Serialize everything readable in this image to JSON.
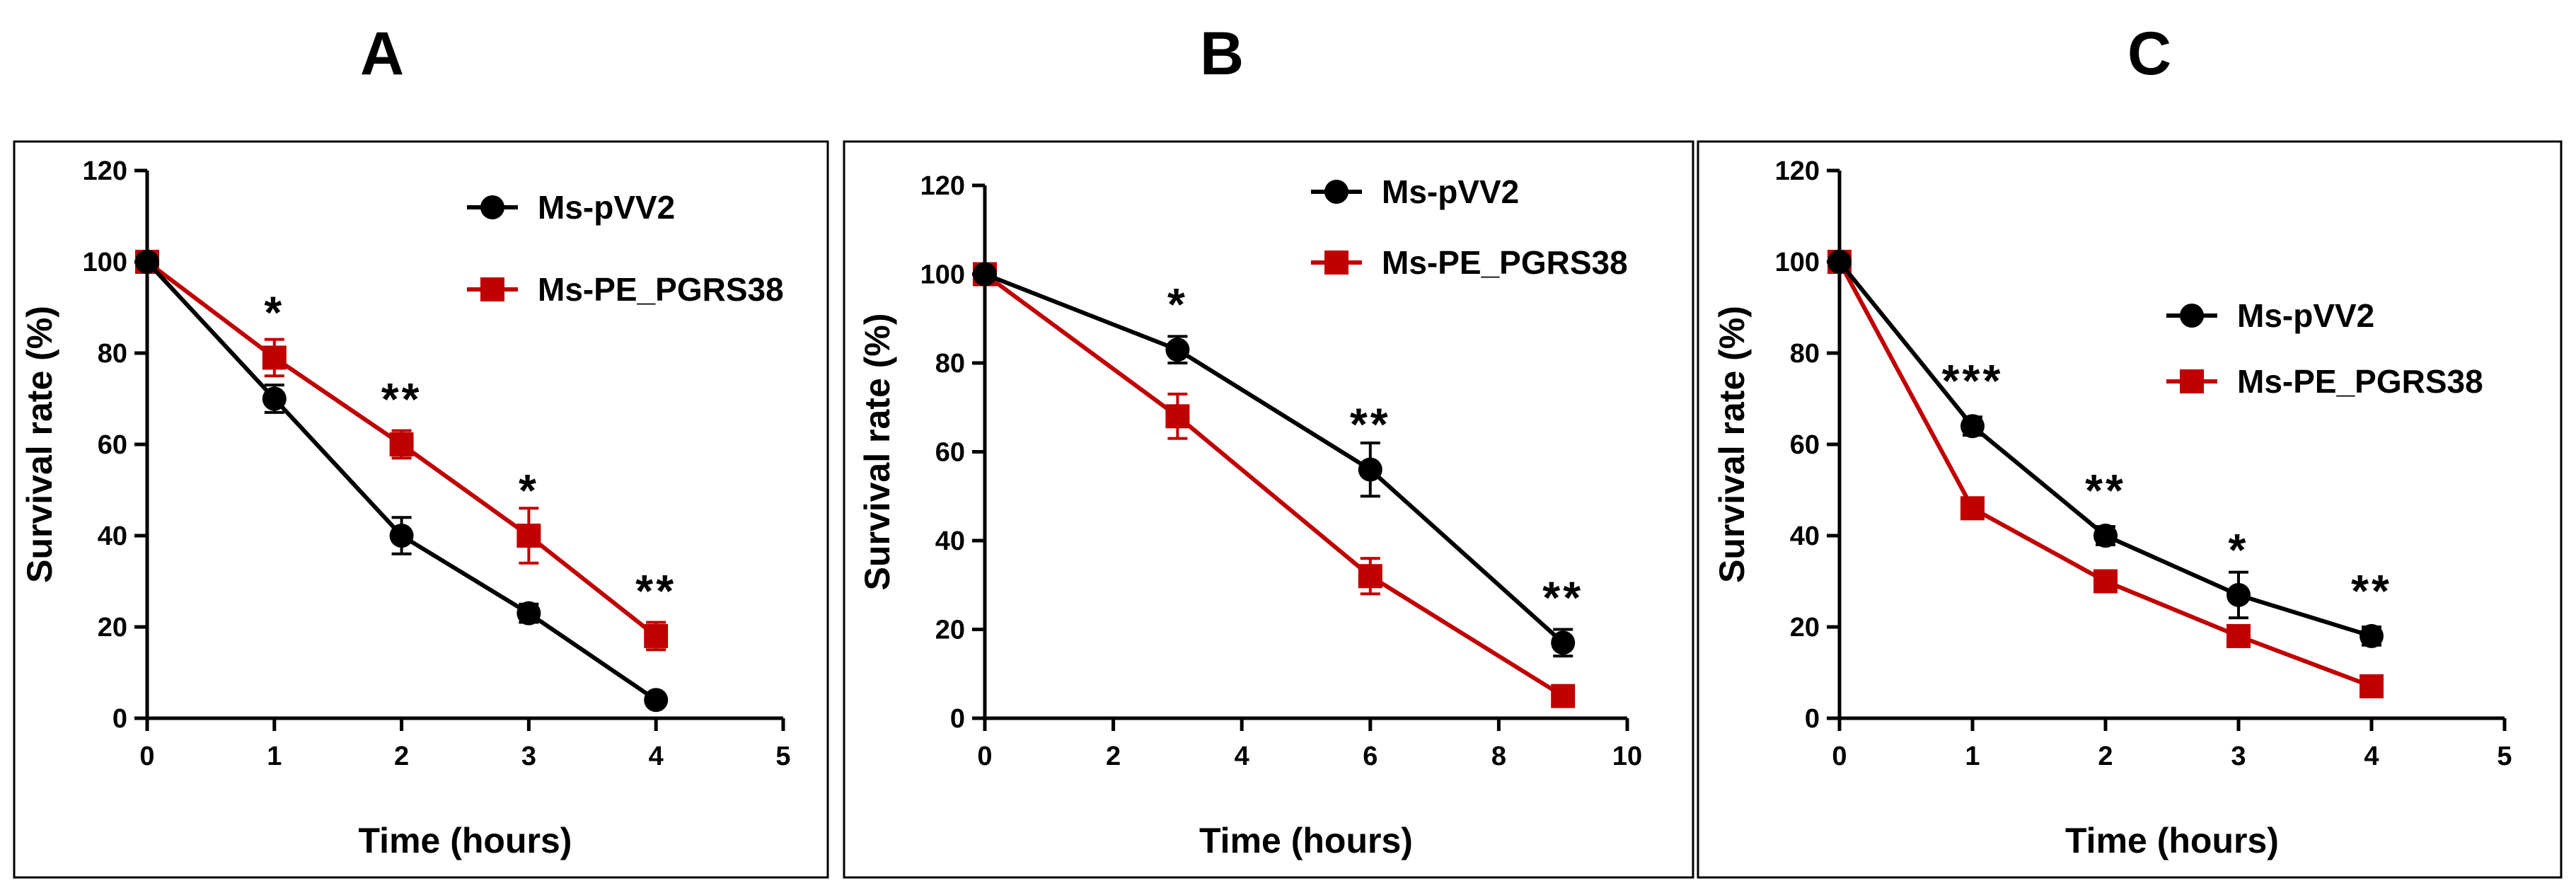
{
  "chart_data": [
    {
      "type": "line",
      "panel_label": "A",
      "xlabel": "Time (hours)",
      "ylabel": "Survival rate (%)",
      "xlim": [
        0,
        5
      ],
      "ylim": [
        0,
        120
      ],
      "xticks": [
        0,
        1,
        2,
        3,
        4,
        5
      ],
      "yticks": [
        0,
        20,
        40,
        60,
        80,
        100,
        120
      ],
      "grid": false,
      "legend_position": "top-right",
      "series": [
        {
          "name": "Ms-pVV2",
          "color": "#000000",
          "marker": "circle",
          "x": [
            0,
            1,
            2,
            3,
            4
          ],
          "y": [
            100,
            70,
            40,
            23,
            4
          ],
          "err": [
            0,
            3,
            4,
            2,
            1
          ]
        },
        {
          "name": "Ms-PE_PGRS38",
          "color": "#c00000",
          "marker": "square",
          "x": [
            0,
            1,
            2,
            3,
            4
          ],
          "y": [
            100,
            79,
            60,
            40,
            18
          ],
          "err": [
            0,
            4,
            3,
            6,
            3
          ]
        }
      ],
      "annotations": [
        {
          "x": 1,
          "y": 79,
          "text": "*"
        },
        {
          "x": 2,
          "y": 60,
          "text": "**"
        },
        {
          "x": 3,
          "y": 40,
          "text": "*"
        },
        {
          "x": 4,
          "y": 18,
          "text": "**"
        }
      ]
    },
    {
      "type": "line",
      "panel_label": "B",
      "xlabel": "Time (hours)",
      "ylabel": "Survival rate (%)",
      "xlim": [
        0,
        10
      ],
      "ylim": [
        0,
        120
      ],
      "xticks": [
        0,
        2,
        4,
        6,
        8,
        10
      ],
      "yticks": [
        0,
        20,
        40,
        60,
        80,
        100,
        120
      ],
      "grid": false,
      "legend_position": "top-right",
      "series": [
        {
          "name": "Ms-pVV2",
          "color": "#000000",
          "marker": "circle",
          "x": [
            0,
            3,
            6,
            9
          ],
          "y": [
            100,
            83,
            56,
            17
          ],
          "err": [
            0,
            3,
            6,
            3
          ]
        },
        {
          "name": "Ms-PE_PGRS38",
          "color": "#c00000",
          "marker": "square",
          "x": [
            0,
            3,
            6,
            9
          ],
          "y": [
            100,
            68,
            32,
            5
          ],
          "err": [
            0,
            5,
            4,
            2
          ]
        }
      ],
      "annotations": [
        {
          "x": 3,
          "y": 83,
          "text": "*"
        },
        {
          "x": 6,
          "y": 56,
          "text": "**"
        },
        {
          "x": 9,
          "y": 17,
          "text": "**"
        }
      ]
    },
    {
      "type": "line",
      "panel_label": "C",
      "xlabel": "Time (hours)",
      "ylabel": "Survival rate (%)",
      "xlim": [
        0,
        5
      ],
      "ylim": [
        0,
        120
      ],
      "xticks": [
        0,
        1,
        2,
        3,
        4,
        5
      ],
      "yticks": [
        0,
        20,
        40,
        60,
        80,
        100,
        120
      ],
      "grid": false,
      "legend_position": "center-right",
      "series": [
        {
          "name": "Ms-pVV2",
          "color": "#000000",
          "marker": "circle",
          "x": [
            0,
            1,
            2,
            3,
            4
          ],
          "y": [
            100,
            64,
            40,
            27,
            18
          ],
          "err": [
            0,
            2,
            2,
            5,
            2
          ]
        },
        {
          "name": "Ms-PE_PGRS38",
          "color": "#c00000",
          "marker": "square",
          "x": [
            0,
            1,
            2,
            3,
            4
          ],
          "y": [
            100,
            46,
            30,
            18,
            7
          ],
          "err": [
            0,
            2,
            2,
            2,
            2
          ]
        }
      ],
      "annotations": [
        {
          "x": 1,
          "y": 64,
          "text": "***"
        },
        {
          "x": 2,
          "y": 40,
          "text": "**"
        },
        {
          "x": 3,
          "y": 27,
          "text": "*"
        },
        {
          "x": 4,
          "y": 18,
          "text": "**"
        }
      ]
    }
  ]
}
